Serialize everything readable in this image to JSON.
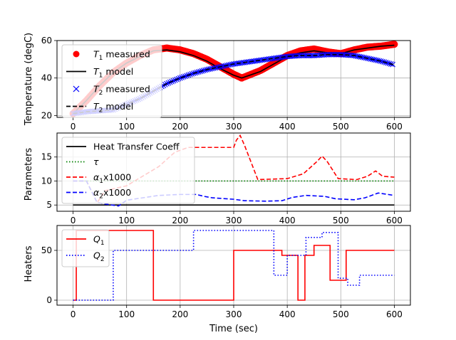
{
  "chart_data": [
    {
      "type": "line",
      "ylabel": "Temperature (degC)",
      "xlim": [
        -30,
        630
      ],
      "ylim": [
        19,
        60
      ],
      "xticks": [
        0,
        100,
        200,
        300,
        400,
        500,
        600
      ],
      "yticks": [
        20,
        40,
        60
      ],
      "grid": true,
      "legend": "upper-left",
      "series": [
        {
          "name_base": "T",
          "name_sub": "1",
          "name_rest": " measured",
          "style": "marker-circle",
          "color": "#ff0000",
          "x": [
            0,
            25,
            50,
            75,
            100,
            125,
            150,
            175,
            200,
            225,
            250,
            275,
            300,
            315,
            350,
            375,
            400,
            425,
            450,
            475,
            500,
            525,
            550,
            575,
            600
          ],
          "y": [
            21,
            28,
            36,
            43,
            48,
            52,
            55,
            56,
            55,
            53,
            50,
            46,
            42,
            40,
            44,
            48,
            52,
            54.5,
            55.5,
            54,
            53,
            55,
            56.5,
            57,
            58
          ]
        },
        {
          "name_base": "T",
          "name_sub": "1",
          "name_rest": " model",
          "style": "solid",
          "color": "#000000",
          "x": [
            0,
            25,
            50,
            75,
            100,
            125,
            150,
            175,
            200,
            225,
            250,
            275,
            300,
            315,
            350,
            375,
            400,
            425,
            450,
            475,
            500,
            525,
            550,
            575,
            600
          ],
          "y": [
            21,
            28,
            36,
            43,
            48,
            51.5,
            54.5,
            55,
            54,
            52,
            49,
            45,
            41.5,
            40,
            43.5,
            47.5,
            51.5,
            53.5,
            54.5,
            53.5,
            53,
            55,
            56,
            57,
            57.5
          ]
        },
        {
          "name_base": "T",
          "name_sub": "2",
          "name_rest": " measured",
          "style": "marker-x",
          "color": "#0000ff",
          "x": [
            0,
            25,
            50,
            75,
            100,
            125,
            150,
            175,
            200,
            225,
            250,
            275,
            300,
            325,
            350,
            375,
            400,
            425,
            450,
            475,
            500,
            525,
            550,
            575,
            600
          ],
          "y": [
            21,
            22,
            22.5,
            23,
            26,
            29,
            33,
            37,
            40,
            42.5,
            44.5,
            46,
            47.5,
            48.5,
            49.5,
            50.5,
            51.5,
            52,
            52,
            52.5,
            52.5,
            52,
            50.5,
            49,
            47
          ]
        },
        {
          "name_base": "T",
          "name_sub": "2",
          "name_rest": " model",
          "style": "dashed",
          "color": "#000000",
          "x": [
            0,
            25,
            50,
            75,
            100,
            125,
            150,
            175,
            200,
            225,
            250,
            275,
            300,
            325,
            350,
            375,
            400,
            425,
            450,
            475,
            500,
            525,
            550,
            575,
            600
          ],
          "y": [
            21,
            22,
            22.5,
            23,
            26,
            29,
            33,
            37,
            40,
            42.5,
            44.5,
            46,
            47.5,
            48.5,
            49.5,
            50.5,
            51.5,
            52,
            52,
            52.5,
            52.5,
            52,
            50.5,
            49,
            47
          ]
        }
      ]
    },
    {
      "type": "line",
      "ylabel": "Parameters",
      "xlim": [
        -30,
        630
      ],
      "ylim": [
        3.7,
        20
      ],
      "xticks": [
        0,
        100,
        200,
        300,
        400,
        500,
        600
      ],
      "yticks": [
        5,
        10,
        15
      ],
      "grid": true,
      "legend": "upper-left",
      "series": [
        {
          "name_base": "Heat Transfer Coeff",
          "name_sub": "",
          "name_rest": "",
          "style": "solid",
          "color": "#000000",
          "x": [
            0,
            600
          ],
          "y": [
            5,
            5
          ]
        },
        {
          "name_base": "τ",
          "name_sub": "",
          "name_rest": "",
          "style": "dotted",
          "color": "#008000",
          "x": [
            0,
            600
          ],
          "y": [
            10,
            10
          ]
        },
        {
          "name_base": "α",
          "name_sub": "1",
          "name_rest": "x1000",
          "style": "dashed",
          "color": "#ff0000",
          "x": [
            0,
            25,
            45,
            60,
            80,
            100,
            130,
            160,
            190,
            215,
            230,
            260,
            290,
            300,
            305,
            312,
            320,
            345,
            400,
            430,
            455,
            465,
            475,
            495,
            530,
            550,
            565,
            578,
            600
          ],
          "y": [
            10,
            10,
            5.5,
            8,
            8.5,
            9,
            11,
            13,
            16,
            17,
            17,
            17,
            17,
            17,
            18.5,
            19.5,
            17.5,
            10.3,
            10.5,
            11.5,
            14,
            15.2,
            14,
            10.5,
            10.3,
            11,
            12.1,
            11,
            10.8
          ]
        },
        {
          "name_base": "α",
          "name_sub": "2",
          "name_rest": "x1000",
          "style": "dashed",
          "color": "#0000ff",
          "x": [
            0,
            25,
            45,
            60,
            85,
            90,
            100,
            130,
            160,
            200,
            230,
            245,
            260,
            300,
            320,
            360,
            390,
            410,
            435,
            470,
            490,
            525,
            545,
            570,
            600
          ],
          "y": [
            10,
            10,
            5.5,
            5.2,
            4.8,
            5.2,
            6,
            6.5,
            7,
            7.2,
            7.2,
            6.8,
            6.5,
            6.2,
            5.9,
            5.8,
            5.9,
            6.6,
            7,
            6.8,
            6.3,
            6.1,
            6.5,
            7.5,
            7
          ]
        }
      ]
    },
    {
      "type": "line",
      "xlabel": "Time (sec)",
      "ylabel": "Heaters",
      "xlim": [
        -30,
        630
      ],
      "ylim": [
        -5,
        75
      ],
      "xticks": [
        0,
        100,
        200,
        300,
        400,
        500,
        600
      ],
      "yticks": [
        0,
        50
      ],
      "grid": true,
      "legend": "upper-left",
      "series": [
        {
          "name_base": "Q",
          "name_sub": "1",
          "name_rest": "",
          "style": "step-solid",
          "color": "#ff0000",
          "x": [
            0,
            6,
            150,
            300,
            390,
            420,
            433,
            450,
            480,
            510,
            540,
            600
          ],
          "y": [
            0,
            70,
            0,
            50,
            45,
            0,
            45,
            55,
            20,
            50,
            50,
            50
          ]
        },
        {
          "name_base": "Q",
          "name_sub": "2",
          "name_rest": "",
          "style": "step-dotted",
          "color": "#0000ff",
          "x": [
            0,
            75,
            225,
            375,
            400,
            435,
            465,
            495,
            513,
            535,
            560,
            600
          ],
          "y": [
            0,
            50,
            70,
            25,
            45,
            63,
            68,
            22,
            15,
            25,
            25,
            25
          ]
        }
      ]
    }
  ]
}
